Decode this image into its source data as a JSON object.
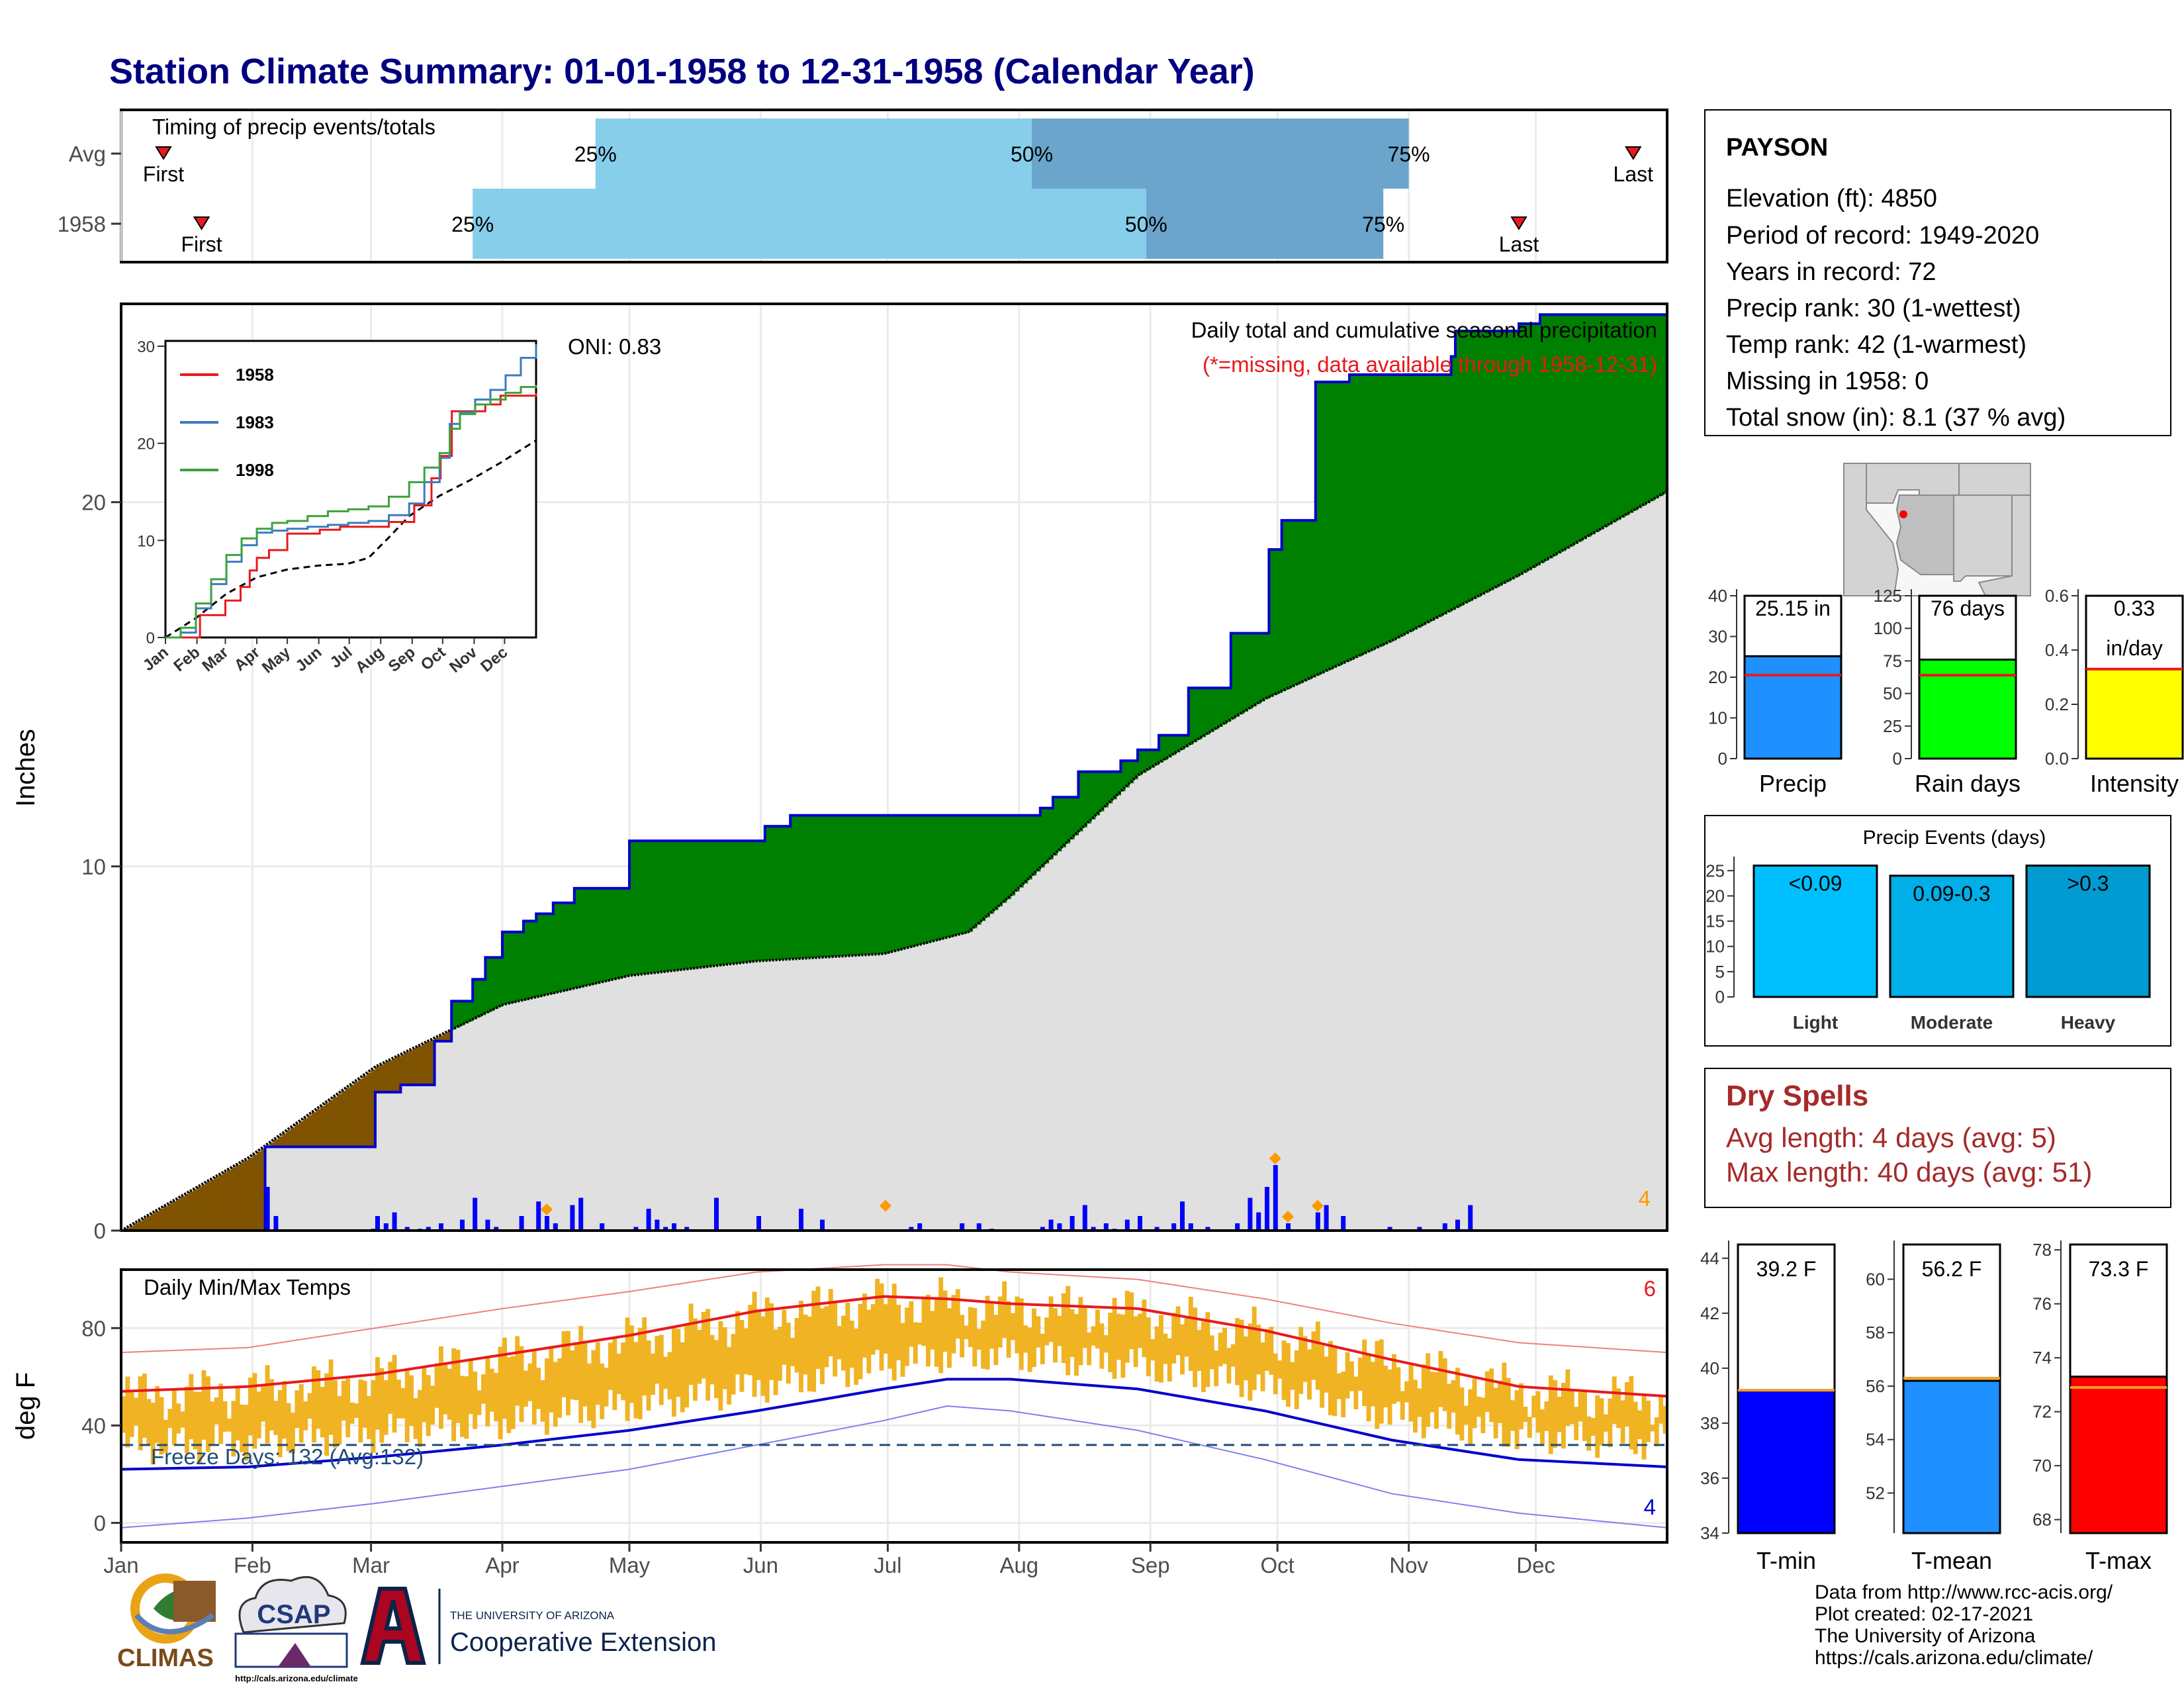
{
  "title": "Station Climate Summary: 01-01-1958 to 12-31-1958 (Calendar Year)",
  "months": [
    "Jan",
    "Feb",
    "Mar",
    "Apr",
    "May",
    "Jun",
    "Jul",
    "Aug",
    "Sep",
    "Oct",
    "Nov",
    "Dec"
  ],
  "timing": {
    "title": "Timing of precip events/totals",
    "rows": [
      {
        "label": "Avg",
        "first_day": 10,
        "last_day": 357,
        "q25": 112,
        "q50": 215,
        "q75": 304,
        "q25_label": "25%",
        "q50_label": "50%",
        "q75_label": "75%",
        "first_label": "First",
        "last_label": "Last"
      },
      {
        "label": "1958",
        "first_day": 19,
        "last_day": 330,
        "q25": 83,
        "q50": 242,
        "q75": 298,
        "q25_label": "25%",
        "q50_label": "50%",
        "q75_label": "75%",
        "first_label": "First",
        "last_label": "Last"
      }
    ],
    "colors": {
      "light": "#87CEEB",
      "dark": "#6BA5CC",
      "marker": "#E8191C"
    }
  },
  "chart_data": [
    {
      "type": "area",
      "name": "precipitation",
      "title": "Daily total and cumulative seasonal precipitation",
      "subtitle": "(*=missing, data available through 1958-12-31)",
      "ylabel": "Inches",
      "oni_label": "ONI: 0.83",
      "ylim": [
        0,
        25.3
      ],
      "yticks": [
        0,
        10,
        20
      ],
      "corner_label": "4",
      "x_days": [
        0,
        20,
        34,
        59,
        60,
        66,
        74,
        78,
        83,
        86,
        90,
        95,
        98,
        102,
        107,
        120,
        130,
        148,
        152,
        158,
        172,
        181,
        190,
        199,
        217,
        220,
        226,
        236,
        240,
        245,
        252,
        262,
        271,
        274,
        282,
        290,
        295,
        308,
        314,
        315,
        324,
        330,
        335,
        365
      ],
      "cumulative_1958": [
        0,
        0,
        2.3,
        2.3,
        3.8,
        4.0,
        5.2,
        6.3,
        6.9,
        7.5,
        8.2,
        8.5,
        8.7,
        9.0,
        9.4,
        10.7,
        10.7,
        10.7,
        11.1,
        11.4,
        11.4,
        11.4,
        11.4,
        11.4,
        11.6,
        11.9,
        12.6,
        12.9,
        13.2,
        13.6,
        14.9,
        16.4,
        18.7,
        19.5,
        23.3,
        23.5,
        23.5,
        23.5,
        24.0,
        24.7,
        24.7,
        24.9,
        25.15,
        25.15
      ],
      "avg_x": [
        0,
        30,
        60,
        90,
        120,
        150,
        180,
        200,
        210,
        220,
        240,
        270,
        300,
        330,
        365
      ],
      "avg_cumulative": [
        0,
        2.0,
        4.5,
        6.2,
        7.0,
        7.4,
        7.6,
        8.2,
        9.2,
        10.3,
        12.5,
        14.6,
        16.2,
        18.0,
        20.3
      ],
      "daily_bars": [
        [
          34,
          1.2
        ],
        [
          36,
          0.4
        ],
        [
          59,
          0.05
        ],
        [
          60,
          0.4
        ],
        [
          62,
          0.2
        ],
        [
          64,
          0.5
        ],
        [
          67,
          0.1
        ],
        [
          70,
          0.05
        ],
        [
          72,
          0.1
        ],
        [
          75,
          0.2
        ],
        [
          80,
          0.3
        ],
        [
          83,
          0.9
        ],
        [
          86,
          0.3
        ],
        [
          88,
          0.1
        ],
        [
          94,
          0.4
        ],
        [
          98,
          0.8
        ],
        [
          100,
          0.4
        ],
        [
          102,
          0.2
        ],
        [
          106,
          0.7
        ],
        [
          108,
          0.9
        ],
        [
          113,
          0.2
        ],
        [
          121,
          0.1
        ],
        [
          124,
          0.6
        ],
        [
          126,
          0.3
        ],
        [
          128,
          0.1
        ],
        [
          130,
          0.2
        ],
        [
          133,
          0.1
        ],
        [
          140,
          0.9
        ],
        [
          150,
          0.4
        ],
        [
          160,
          0.6
        ],
        [
          165,
          0.3
        ],
        [
          186,
          0.1
        ],
        [
          188,
          0.2
        ],
        [
          198,
          0.2
        ],
        [
          202,
          0.2
        ],
        [
          205,
          0.05
        ],
        [
          217,
          0.1
        ],
        [
          219,
          0.3
        ],
        [
          221,
          0.2
        ],
        [
          224,
          0.4
        ],
        [
          227,
          0.7
        ],
        [
          229,
          0.1
        ],
        [
          232,
          0.2
        ],
        [
          234,
          0.05
        ],
        [
          237,
          0.3
        ],
        [
          240,
          0.4
        ],
        [
          244,
          0.1
        ],
        [
          248,
          0.2
        ],
        [
          250,
          0.8
        ],
        [
          252,
          0.2
        ],
        [
          256,
          0.1
        ],
        [
          263,
          0.2
        ],
        [
          266,
          0.9
        ],
        [
          268,
          0.5
        ],
        [
          270,
          1.2
        ],
        [
          272,
          1.8
        ],
        [
          275,
          0.2
        ],
        [
          282,
          0.5
        ],
        [
          284,
          0.7
        ],
        [
          288,
          0.4
        ],
        [
          299,
          0.1
        ],
        [
          306,
          0.1
        ],
        [
          312,
          0.2
        ],
        [
          315,
          0.3
        ],
        [
          318,
          0.7
        ]
      ],
      "daily_markers_days": [
        100,
        180,
        272,
        275,
        282
      ],
      "inset": {
        "ylim": [
          0,
          30
        ],
        "yticks": [
          0,
          10,
          20,
          30
        ],
        "series": [
          {
            "name": "1958",
            "color": "#E8191C",
            "x": [
              0,
              20,
              34,
              59,
              74,
              83,
              90,
              102,
              120,
              148,
              152,
              172,
              199,
              220,
              245,
              262,
              271,
              282,
              315,
              330,
              365
            ],
            "y": [
              0,
              0,
              2.3,
              3.8,
              5.2,
              6.9,
              8.2,
              9.0,
              10.7,
              10.7,
              11.1,
              11.4,
              11.4,
              11.9,
              13.6,
              16.4,
              18.7,
              23.3,
              24.0,
              24.9,
              25.15
            ]
          },
          {
            "name": "1983",
            "color": "#3A7BBF",
            "x": [
              0,
              15,
              30,
              45,
              60,
              75,
              90,
              105,
              120,
              140,
              160,
              180,
              200,
              220,
              240,
              255,
              270,
              280,
              290,
              305,
              320,
              335,
              350,
              365
            ],
            "y": [
              0,
              0.5,
              3.0,
              5.5,
              7.8,
              9.5,
              10.8,
              11.0,
              11.2,
              11.4,
              11.6,
              11.8,
              12.0,
              12.6,
              13.8,
              16.0,
              18.5,
              22.0,
              23.2,
              24.5,
              25.5,
              27.0,
              28.8,
              30.2
            ]
          },
          {
            "name": "1998",
            "color": "#3DA23D",
            "x": [
              0,
              15,
              30,
              45,
              60,
              75,
              90,
              105,
              120,
              140,
              160,
              180,
              200,
              220,
              240,
              255,
              270,
              280,
              290,
              305,
              320,
              335,
              350,
              365
            ],
            "y": [
              0,
              1.0,
              3.5,
              6.0,
              8.5,
              10.2,
              11.2,
              11.8,
              12.0,
              12.5,
              13.0,
              13.2,
              13.5,
              14.5,
              16.0,
              17.5,
              19.0,
              21.5,
              23.0,
              24.0,
              24.5,
              25.2,
              25.8,
              26.0
            ]
          }
        ],
        "avg": {
          "x": [
            0,
            30,
            60,
            90,
            120,
            150,
            180,
            200,
            220,
            240,
            270,
            300,
            330,
            365
          ],
          "y": [
            0,
            2.0,
            4.5,
            6.2,
            7.0,
            7.4,
            7.6,
            8.2,
            10.3,
            12.5,
            14.6,
            16.2,
            18.0,
            20.3
          ]
        }
      },
      "colors": {
        "cum": "#0000CC",
        "surplus": "#008000",
        "deficit": "#7F5300",
        "avg_fill": "#E0E0E0",
        "bar": "#0000FF",
        "marker": "#FF9900",
        "subtitle": "#E8191C"
      }
    },
    {
      "type": "bar",
      "name": "temperature",
      "title": "Daily Min/Max Temps",
      "ylabel": "deg F",
      "ylim": [
        -8,
        104
      ],
      "yticks": [
        0,
        40,
        80
      ],
      "freeze_label": "Freeze Days: 132 (Avg:132)",
      "freeze_line": 32,
      "corner_top": "6",
      "corner_bottom": "4",
      "avg_max_x": [
        0,
        30,
        60,
        90,
        120,
        150,
        180,
        195,
        210,
        240,
        270,
        300,
        330,
        365
      ],
      "avg_max": [
        54,
        56,
        61,
        69,
        77,
        87,
        93,
        92,
        90,
        88,
        79,
        67,
        56,
        52
      ],
      "avg_min": [
        22,
        23,
        27,
        32,
        38,
        46,
        55,
        59,
        59,
        55,
        46,
        34,
        26,
        23
      ],
      "record_max": [
        70,
        72,
        80,
        88,
        95,
        103,
        106,
        106,
        103,
        100,
        92,
        82,
        74,
        70
      ],
      "record_min": [
        -2,
        2,
        8,
        15,
        22,
        32,
        42,
        48,
        46,
        38,
        26,
        12,
        4,
        -2
      ],
      "colors": {
        "bar": "#F0B323",
        "avg_max": "#E8191C",
        "avg_min": "#0000CC",
        "freeze": "#1F4E79"
      }
    }
  ],
  "station": {
    "name": "PAYSON",
    "lines": [
      "Elevation (ft): 4850",
      "Period of record: 1949-2020",
      "Years in record: 72",
      "Precip rank: 30 (1-wettest)",
      "Temp rank: 42 (1-warmest)",
      "Missing in 1958: 0",
      "Total snow (in): 8.1 (37 % avg)"
    ]
  },
  "summary_bars": [
    {
      "label": "Precip",
      "value": 25.15,
      "value_label": "25.15 in",
      "avg": 20.5,
      "ylim": [
        0,
        40
      ],
      "yticks": [
        0,
        10,
        20,
        30,
        40
      ],
      "color": "#1E90FF"
    },
    {
      "label": "Rain days",
      "value": 76,
      "value_label": "76 days",
      "avg": 64,
      "ylim": [
        0,
        125
      ],
      "yticks": [
        0,
        25,
        50,
        75,
        100,
        125
      ],
      "color": "#00FF00"
    },
    {
      "label": "Intensity",
      "value": 0.33,
      "value_label": "0.33",
      "value_label2": "in/day",
      "avg": 0.33,
      "ylim": [
        0,
        0.6
      ],
      "yticks": [
        0.0,
        0.2,
        0.4,
        0.6
      ],
      "color": "#FFFF00"
    }
  ],
  "precip_events": {
    "title": "Precip Events (days)",
    "ylim": [
      0,
      27
    ],
    "yticks": [
      0,
      5,
      10,
      15,
      20,
      25
    ],
    "bars": [
      {
        "label": "Light",
        "value": 26,
        "value_label": "<0.09",
        "color": "#00BFFF"
      },
      {
        "label": "Moderate",
        "value": 24,
        "value_label": "0.09-0.3",
        "color": "#00AEE8"
      },
      {
        "label": "Heavy",
        "value": 26,
        "value_label": ">0.3",
        "color": "#009BD0"
      }
    ]
  },
  "dry_spells": {
    "title": "Dry Spells",
    "avg_line": "Avg length: 4 days (avg: 5)",
    "max_line": "Max length: 40 days (avg: 51)",
    "color": "#A52A2A"
  },
  "temp_bars": [
    {
      "label": "T-min",
      "value": 39.2,
      "value_label": "39.2 F",
      "avg": 39.2,
      "ylim": [
        34,
        44.5
      ],
      "yticks": [
        34,
        36,
        38,
        40,
        42,
        44
      ],
      "color": "#0000FF"
    },
    {
      "label": "T-mean",
      "value": 56.2,
      "value_label": "56.2 F",
      "avg": 56.3,
      "ylim": [
        50.5,
        61.3
      ],
      "yticks": [
        52,
        54,
        56,
        58,
        60
      ],
      "color": "#1E90FF"
    },
    {
      "label": "T-max",
      "value": 73.3,
      "value_label": "73.3 F",
      "avg": 72.9,
      "ylim": [
        67.5,
        78.2
      ],
      "yticks": [
        68,
        70,
        72,
        74,
        76,
        78
      ],
      "color": "#FF0000"
    }
  ],
  "footer": {
    "lines": [
      "Data from http://www.rcc-acis.org/",
      "Plot created: 02-17-2021",
      "The University of Arizona",
      "https://cals.arizona.edu/climate/"
    ],
    "logo_climas": "CLIMAS",
    "logo_csap": "CSAP",
    "logo_csap_url": "http://cals.arizona.edu/climate",
    "logo_ua_top": "THE UNIVERSITY OF ARIZONA",
    "logo_ua_bottom": "Cooperative Extension"
  }
}
